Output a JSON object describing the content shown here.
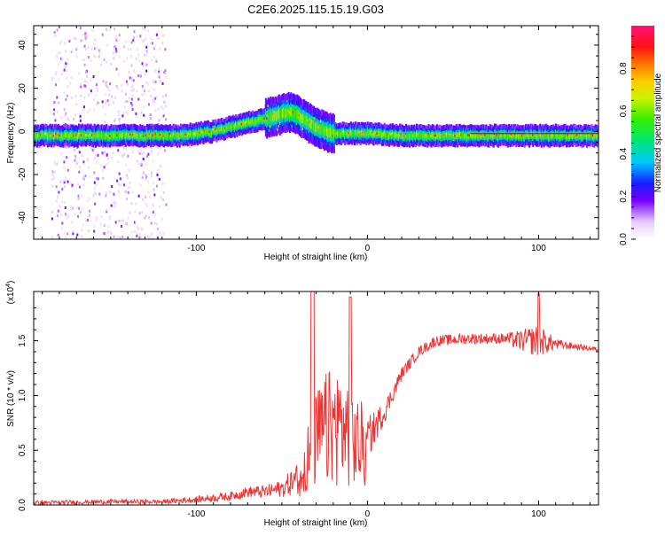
{
  "title": "C2E6.2025.115.15.19.G03",
  "chart_data": [
    {
      "type": "heatmap",
      "xlabel": "Height of straight line (km)",
      "ylabel": "Frequency (Hz)",
      "xlim": [
        -195,
        135
      ],
      "ylim": [
        -50,
        49
      ],
      "x_ticks": [
        -100,
        0,
        100
      ],
      "y_ticks": [
        -40,
        -20,
        0,
        20,
        40
      ],
      "colorbar": {
        "label": "Normalized spectral amplitude",
        "range": [
          0,
          1
        ],
        "ticks": [
          "0.0",
          "0.2",
          "0.4",
          "0.6",
          "0.8"
        ],
        "tick_values": [
          0,
          0.2,
          0.4,
          0.6,
          0.8
        ]
      },
      "ridge": {
        "x": [
          -195,
          -120,
          -110,
          -100,
          -90,
          -80,
          -70,
          -60,
          -50,
          -45,
          -40,
          -35,
          -30,
          -25,
          -20,
          -15,
          -10,
          0,
          20,
          50,
          80,
          100,
          135
        ],
        "y": [
          -2,
          -2,
          -2,
          -1,
          0,
          2,
          4,
          6,
          8,
          9,
          7,
          4,
          2,
          0,
          -1,
          -1,
          -1,
          -1,
          -2,
          -2,
          -2,
          -2,
          -2
        ]
      },
      "noise_region": [
        -185,
        -118
      ]
    },
    {
      "type": "line",
      "xlabel": "Height of straight line (km)",
      "ylabel": "SNR (10 * v/v)",
      "multiplier": "(x10",
      "multiplier_exp": "4",
      "xlim": [
        -195,
        135
      ],
      "ylim": [
        0,
        1.95
      ],
      "x_ticks": [
        -100,
        0,
        100
      ],
      "y_ticks": [
        0,
        0.5,
        1.0,
        1.5
      ],
      "y_tick_labels": [
        "0.0",
        "0.5",
        "1.0",
        "1.5"
      ],
      "color": "#ee3333",
      "envelope": {
        "x": [
          -195,
          -150,
          -120,
          -100,
          -80,
          -70,
          -60,
          -50,
          -40,
          -35,
          -30,
          -25,
          -20,
          -15,
          -10,
          -5,
          0,
          10,
          20,
          30,
          40,
          60,
          80,
          90,
          100,
          110,
          120,
          135
        ],
        "y": [
          0.02,
          0.03,
          0.03,
          0.05,
          0.08,
          0.12,
          0.12,
          0.15,
          0.25,
          0.5,
          0.7,
          0.8,
          0.85,
          0.85,
          0.75,
          0.65,
          0.6,
          0.85,
          1.2,
          1.4,
          1.5,
          1.52,
          1.52,
          1.5,
          1.5,
          1.47,
          1.45,
          1.42
        ],
        "noise_amp": [
          0.02,
          0.02,
          0.02,
          0.03,
          0.04,
          0.05,
          0.06,
          0.08,
          0.15,
          0.5,
          0.6,
          0.7,
          0.7,
          0.7,
          0.6,
          0.4,
          0.2,
          0.1,
          0.06,
          0.05,
          0.05,
          0.05,
          0.05,
          0.1,
          0.15,
          0.05,
          0.03,
          0.02
        ]
      }
    }
  ]
}
